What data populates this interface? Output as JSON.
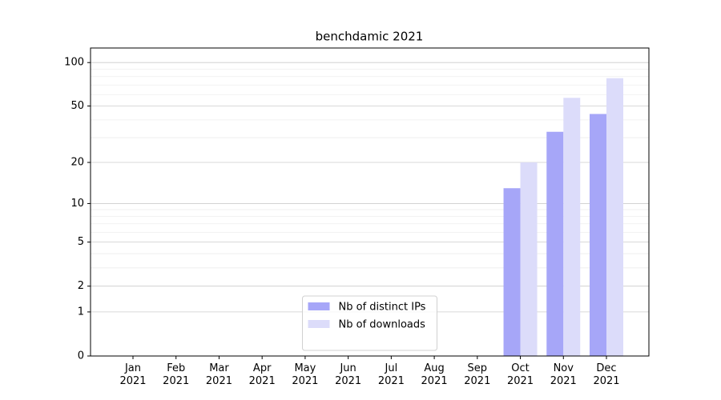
{
  "chart_data": {
    "type": "bar",
    "title": "benchdamic 2021",
    "categories": [
      "Jan\n2021",
      "Feb\n2021",
      "Mar\n2021",
      "Apr\n2021",
      "May\n2021",
      "Jun\n2021",
      "Jul\n2021",
      "Aug\n2021",
      "Sep\n2021",
      "Oct\n2021",
      "Nov\n2021",
      "Dec\n2021"
    ],
    "series": [
      {
        "name": "Nb of distinct IPs",
        "color": "#a6a6f8",
        "values": [
          0,
          0,
          0,
          0,
          0,
          0,
          0,
          0,
          0,
          13,
          33,
          44
        ]
      },
      {
        "name": "Nb of downloads",
        "color": "#dcdcfa",
        "values": [
          0,
          0,
          0,
          0,
          0,
          0,
          0,
          0,
          0,
          20,
          57,
          78
        ]
      }
    ],
    "yscale": "log1p",
    "ylim": [
      0,
      126
    ],
    "yticks": [
      0,
      1,
      2,
      5,
      10,
      20,
      50,
      100
    ],
    "minor_yticks": [
      3,
      4,
      6,
      7,
      8,
      9,
      30,
      40,
      60,
      70,
      80,
      90
    ],
    "grid": true,
    "legend": "lower center"
  }
}
